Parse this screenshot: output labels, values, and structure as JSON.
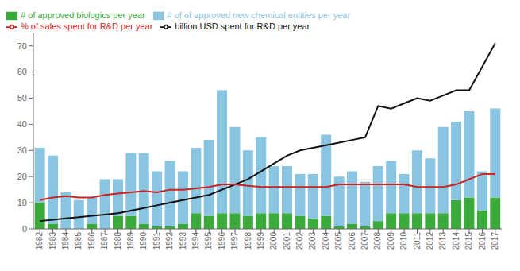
{
  "chart_data": {
    "type": "bar",
    "stacked": true,
    "categories": [
      "1982",
      "1983",
      "1984",
      "1985",
      "1986",
      "1987",
      "1988",
      "1989",
      "1990",
      "1991",
      "1992",
      "1993",
      "1994",
      "1995",
      "1996",
      "1997",
      "1998",
      "1999",
      "2000",
      "2001",
      "2002",
      "2003",
      "2004",
      "2005",
      "2006",
      "2007",
      "2008",
      "2009",
      "2010",
      "2011",
      "2012",
      "2013",
      "2014",
      "2015",
      "2016",
      "2017"
    ],
    "series": [
      {
        "name": "# of approved biologics per year",
        "type": "bar",
        "color": "#3aaa3a",
        "values": [
          10,
          2,
          0,
          0,
          2,
          0,
          5,
          5,
          2,
          1,
          1,
          2,
          6,
          5,
          6,
          6,
          5,
          6,
          6,
          6,
          5,
          4,
          5,
          1,
          2,
          1,
          3,
          6,
          6,
          6,
          6,
          6,
          11,
          12,
          7,
          12
        ]
      },
      {
        "name": "# of of approved new chemical entities per year",
        "type": "bar",
        "color": "#89c4e1",
        "values": [
          21,
          26,
          14,
          11,
          10,
          19,
          14,
          24,
          27,
          21,
          25,
          20,
          25,
          29,
          47,
          33,
          25,
          29,
          18,
          18,
          16,
          17,
          31,
          19,
          20,
          17,
          21,
          20,
          15,
          24,
          21,
          33,
          30,
          33,
          15,
          34
        ]
      },
      {
        "name": "billion USD spent for R&D per year",
        "type": "line",
        "color": "#111111",
        "values": [
          3,
          3.5,
          4,
          4.5,
          5,
          5.5,
          6,
          7,
          8,
          9,
          10,
          11,
          12,
          13,
          15,
          17,
          19,
          22,
          25,
          28,
          30,
          31,
          32,
          33,
          34,
          35,
          47,
          46,
          48,
          50,
          49,
          51,
          53,
          53,
          62,
          71
        ]
      },
      {
        "name": "% of sales spent for R&D per year",
        "type": "line",
        "color": "#cc2222",
        "values": [
          11,
          12,
          12.5,
          12,
          12,
          13,
          13.5,
          14,
          14.5,
          14,
          15,
          15,
          15.5,
          16,
          17,
          17,
          16.5,
          16,
          16,
          16,
          16,
          16,
          16,
          17,
          17,
          17,
          17,
          17,
          17,
          16,
          16,
          16,
          17,
          19,
          21,
          21
        ]
      }
    ],
    "ylim": [
      0,
      75
    ],
    "yticks": [
      0,
      10,
      20,
      30,
      40,
      50,
      60,
      70
    ],
    "grid": false,
    "legend": "upper left"
  }
}
